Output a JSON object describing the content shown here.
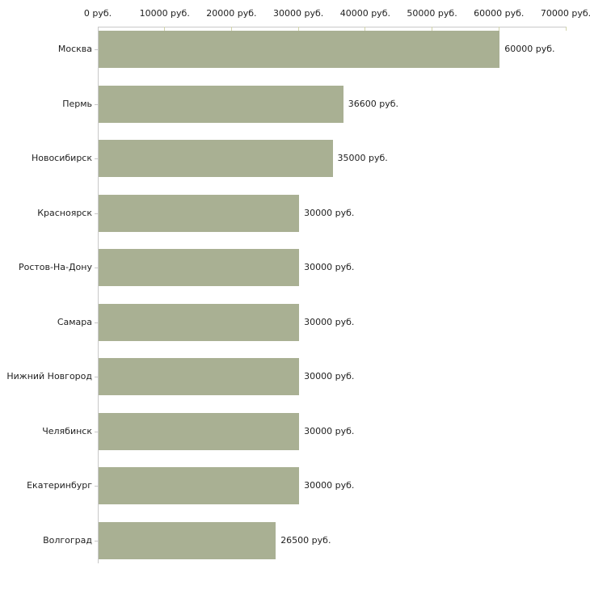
{
  "chart_data": {
    "type": "bar",
    "orientation": "horizontal",
    "title": "",
    "xlabel": "",
    "ylabel": "",
    "unit": "руб.",
    "categories": [
      "Москва",
      "Пермь",
      "Новосибирск",
      "Красноярск",
      "Ростов-На-Дону",
      "Самара",
      "Нижний Новгород",
      "Челябинск",
      "Екатеринбург",
      "Волгоград"
    ],
    "values": [
      60000,
      36600,
      35000,
      30000,
      30000,
      30000,
      30000,
      30000,
      30000,
      26500
    ],
    "value_labels": [
      "60000 руб.",
      "36600 руб.",
      "35000 руб.",
      "30000 руб.",
      "30000 руб.",
      "30000 руб.",
      "30000 руб.",
      "30000 руб.",
      "30000 руб.",
      "26500 руб."
    ],
    "x_ticks": [
      0,
      10000,
      20000,
      30000,
      40000,
      50000,
      60000,
      70000
    ],
    "x_tick_labels": [
      "0 руб.",
      "10000 руб.",
      "20000 руб.",
      "30000 руб.",
      "40000 руб.",
      "50000 руб.",
      "60000 руб.",
      "70000 руб."
    ],
    "xlim": [
      0,
      70000
    ],
    "grid": false,
    "legend": false,
    "bar_color": "#a9b093",
    "axis_color": "#c8c8c8",
    "tick_color": "#d2d4ab",
    "text_color": "#1f1f1f",
    "background_color": "#ffffff"
  }
}
